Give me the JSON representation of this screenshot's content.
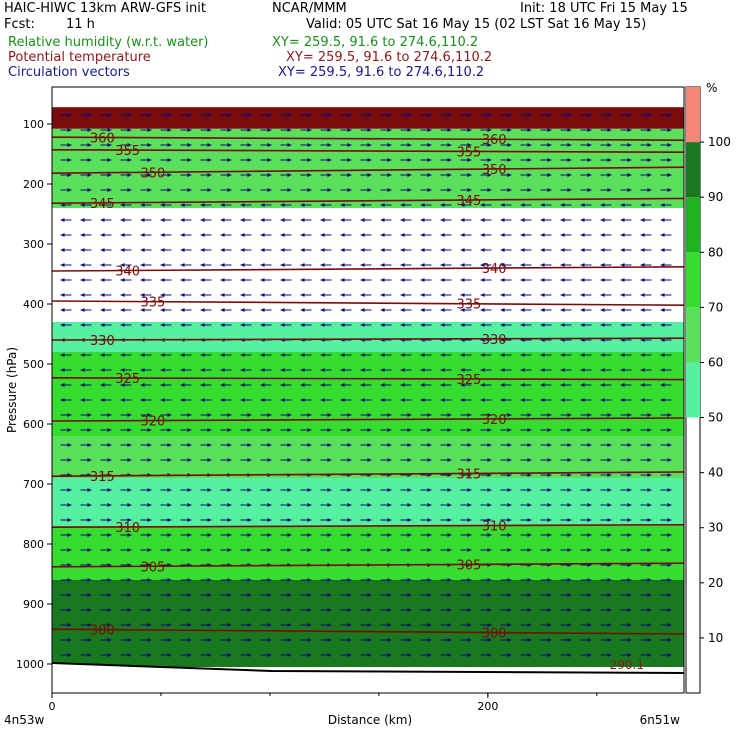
{
  "header": {
    "title_left": "HAIC-HIWC 13km ARW-GFS init",
    "center_org": "NCAR/MMM",
    "init": "Init: 18 UTC Fri 15 May 15",
    "fcst_label": "Fcst:",
    "fcst_value": "11 h",
    "valid": "Valid: 05 UTC Sat 16 May 15 (02 LST Sat 16 May 15)",
    "field1": "Relative humidity (w.r.t. water)",
    "field1_xy": "XY= 259.5, 91.6 to 274.6,110.2",
    "field2": "Potential temperature",
    "field2_xy": "XY= 259.5, 91.6 to 274.6,110.2",
    "field3": "Circulation vectors",
    "field3_xy": "XY= 259.5, 91.6 to 274.6,110.2",
    "colors": {
      "field1": "#1a8f1a",
      "field2": "#8b1a1a",
      "field3": "#1a1a8c"
    }
  },
  "chart_data": {
    "type": "heatmap",
    "title": "HAIC-HIWC 13km ARW-GFS init",
    "xlabel": "Distance (km)",
    "ylabel": "Pressure (hPa)",
    "xlim": [
      0,
      290
    ],
    "x_ticks": [
      0,
      200
    ],
    "x_end_labels": {
      "left": "4n53w",
      "right": "6n51w"
    },
    "ylim": [
      1045,
      72
    ],
    "y_ticks": [
      100,
      200,
      300,
      400,
      500,
      600,
      700,
      800,
      900,
      1000
    ],
    "colorbar": {
      "unit": "%",
      "ticks": [
        10,
        20,
        30,
        40,
        50,
        60,
        70,
        80,
        90,
        100
      ],
      "bins": [
        {
          "from": 50,
          "to": 60,
          "color": "#55f0a0"
        },
        {
          "from": 60,
          "to": 70,
          "color": "#5ae05a"
        },
        {
          "from": 70,
          "to": 80,
          "color": "#36dd2e"
        },
        {
          "from": 80,
          "to": 90,
          "color": "#1fb41f"
        },
        {
          "from": 90,
          "to": 100,
          "color": "#19791e"
        },
        {
          "from": 100,
          "to": 110,
          "color": "#f4877a"
        }
      ]
    },
    "rh_layers": [
      {
        "p_top": 72,
        "p_bot": 108,
        "rh": 115,
        "color": "#7a0b0b"
      },
      {
        "p_top": 108,
        "p_bot": 240,
        "rh": 65,
        "color": "#5ae05a"
      },
      {
        "p_top": 240,
        "p_bot": 430,
        "rh": 40,
        "color": "#ffffff"
      },
      {
        "p_top": 430,
        "p_bot": 480,
        "rh": 55,
        "color": "#55f0a0"
      },
      {
        "p_top": 480,
        "p_bot": 620,
        "rh": 75,
        "color": "#36dd2e"
      },
      {
        "p_top": 620,
        "p_bot": 690,
        "rh": 65,
        "color": "#5ae05a"
      },
      {
        "p_top": 690,
        "p_bot": 770,
        "rh": 55,
        "color": "#55f0a0"
      },
      {
        "p_top": 770,
        "p_bot": 860,
        "rh": 70,
        "color": "#36dd2e"
      },
      {
        "p_top": 860,
        "p_bot": 1005,
        "rh": 95,
        "color": "#19791e"
      }
    ],
    "theta_contours": [
      {
        "theta": 360,
        "p_left": 122,
        "p_right": 127,
        "label": "360"
      },
      {
        "theta": 355,
        "p_left": 143,
        "p_right": 147,
        "label": "355"
      },
      {
        "theta": 350,
        "p_left": 182,
        "p_right": 172,
        "label": "350"
      },
      {
        "theta": 345,
        "p_left": 232,
        "p_right": 224,
        "label": "345"
      },
      {
        "theta": 340,
        "p_left": 345,
        "p_right": 338,
        "label": "340"
      },
      {
        "theta": 335,
        "p_left": 395,
        "p_right": 402,
        "label": "335"
      },
      {
        "theta": 330,
        "p_left": 460,
        "p_right": 457,
        "label": "330"
      },
      {
        "theta": 325,
        "p_left": 523,
        "p_right": 526,
        "label": "325"
      },
      {
        "theta": 320,
        "p_left": 595,
        "p_right": 590,
        "label": "320"
      },
      {
        "theta": 315,
        "p_left": 687,
        "p_right": 680,
        "label": "315"
      },
      {
        "theta": 310,
        "p_left": 772,
        "p_right": 768,
        "label": "310"
      },
      {
        "theta": 305,
        "p_left": 838,
        "p_right": 832,
        "label": "305"
      },
      {
        "theta": 300,
        "p_left": 942,
        "p_right": 950,
        "label": "300"
      }
    ],
    "grid": false,
    "terrain_label": "290.1"
  }
}
